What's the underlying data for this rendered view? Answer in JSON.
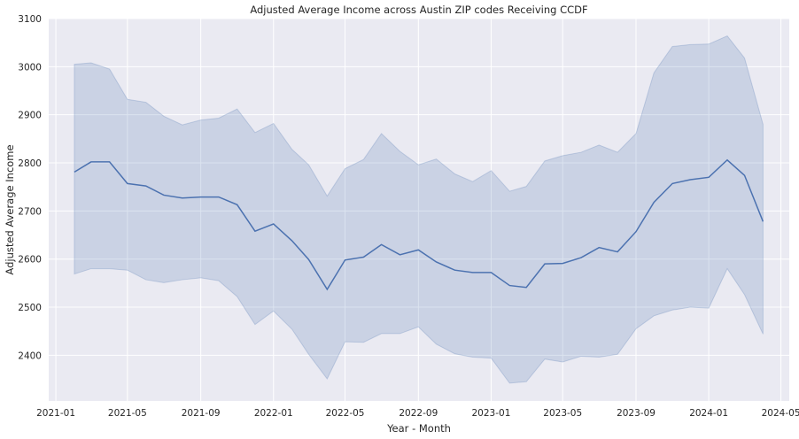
{
  "chart_data": {
    "type": "line",
    "title": "Adjusted Average Income across Austin ZIP codes Receiving CCDF",
    "xlabel": "Year - Month",
    "ylabel": "Adjusted Average Income",
    "x_ticks": [
      "2021-01",
      "2021-05",
      "2021-09",
      "2022-01",
      "2022-05",
      "2022-09",
      "2023-01",
      "2023-05",
      "2023-09",
      "2024-01",
      "2024-05"
    ],
    "y_ticks": [
      2400,
      2500,
      2600,
      2700,
      2800,
      2900,
      3000,
      3100
    ],
    "ylim": [
      2305,
      3100
    ],
    "xlim": [
      "2020-12-20",
      "2024-05-15"
    ],
    "grid": true,
    "legend": "none",
    "colors": {
      "line": "#4c72b0",
      "band": "#4c72b0",
      "background": "#eaeaf2",
      "grid": "#ffffff"
    },
    "series": [
      {
        "x": [
          "2021-02",
          "2021-03",
          "2021-04",
          "2021-05",
          "2021-06",
          "2021-07",
          "2021-08",
          "2021-09",
          "2021-10",
          "2021-11",
          "2021-12",
          "2022-01",
          "2022-02",
          "2022-03",
          "2022-04",
          "2022-05",
          "2022-06",
          "2022-07",
          "2022-08",
          "2022-09",
          "2022-10",
          "2022-11",
          "2022-12",
          "2023-01",
          "2023-02",
          "2023-03",
          "2023-04",
          "2023-05",
          "2023-06",
          "2023-07",
          "2023-08",
          "2023-09",
          "2023-10",
          "2023-11",
          "2023-12",
          "2024-01",
          "2024-02",
          "2024-03",
          "2024-04"
        ],
        "y": [
          2781,
          2802,
          2802,
          2757,
          2752,
          2733,
          2727,
          2729,
          2729,
          2713,
          2658,
          2673,
          2638,
          2599,
          2537,
          2598,
          2604,
          2630,
          2609,
          2619,
          2594,
          2577,
          2572,
          2572,
          2545,
          2541,
          2590,
          2591,
          2603,
          2624,
          2615,
          2657,
          2718,
          2757,
          2765,
          2770,
          2806,
          2774,
          2678
        ],
        "lower": [
          2569,
          2580,
          2580,
          2577,
          2557,
          2551,
          2557,
          2561,
          2555,
          2522,
          2464,
          2492,
          2454,
          2402,
          2351,
          2428,
          2427,
          2445,
          2445,
          2459,
          2423,
          2403,
          2396,
          2394,
          2342,
          2345,
          2392,
          2386,
          2398,
          2396,
          2402,
          2455,
          2482,
          2494,
          2500,
          2498,
          2580,
          2526,
          2444
        ],
        "upper": [
          3005,
          3008,
          2995,
          2932,
          2926,
          2897,
          2879,
          2889,
          2893,
          2912,
          2863,
          2882,
          2828,
          2796,
          2731,
          2788,
          2807,
          2861,
          2824,
          2796,
          2808,
          2777,
          2761,
          2784,
          2741,
          2751,
          2804,
          2815,
          2822,
          2837,
          2822,
          2861,
          2987,
          3042,
          3046,
          3047,
          3064,
          3018,
          2880
        ]
      }
    ]
  }
}
